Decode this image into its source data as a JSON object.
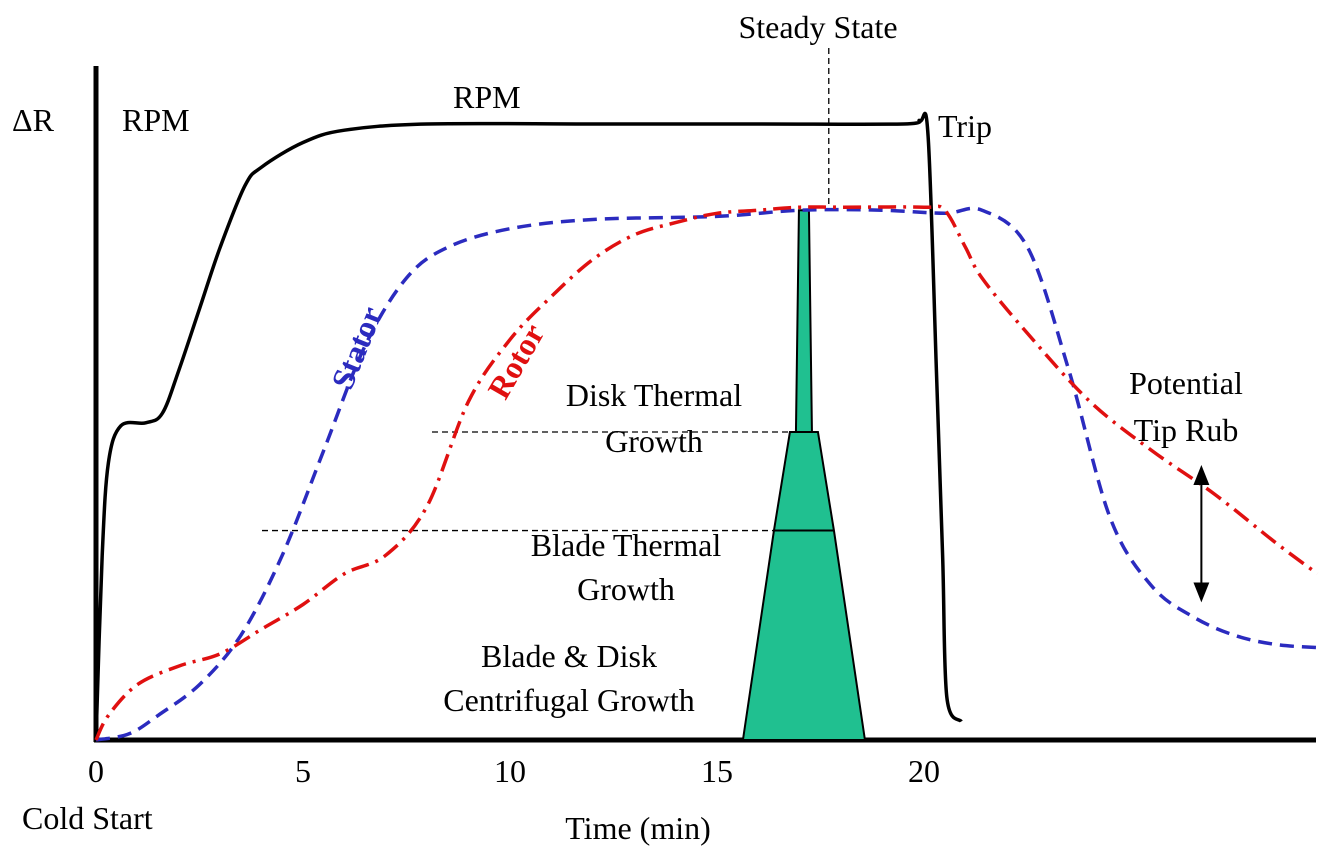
{
  "chart_data": {
    "type": "line",
    "title": "",
    "xlabel": "Time (min)",
    "ylabel": "ΔR",
    "xlim": [
      0,
      29.5
    ],
    "ylim": [
      0,
      1.0
    ],
    "x_ticks": [
      {
        "value": 0,
        "label": "0"
      },
      {
        "value": 5,
        "label": "5"
      },
      {
        "value": 10,
        "label": "10"
      },
      {
        "value": 15,
        "label": "15"
      },
      {
        "value": 20,
        "label": "20"
      }
    ],
    "series": [
      {
        "name": "RPM",
        "color": "#000000",
        "style": "solid",
        "points": [
          [
            0,
            0
          ],
          [
            0.15,
            0.3
          ],
          [
            0.3,
            0.45
          ],
          [
            0.6,
            0.51
          ],
          [
            1.2,
            0.515
          ],
          [
            1.6,
            0.53
          ],
          [
            2,
            0.6
          ],
          [
            2.5,
            0.7
          ],
          [
            3,
            0.8
          ],
          [
            3.6,
            0.9
          ],
          [
            4,
            0.93
          ],
          [
            5,
            0.97
          ],
          [
            6,
            0.99
          ],
          [
            8,
            1.0
          ],
          [
            12,
            1.0
          ],
          [
            16,
            1.0
          ],
          [
            19.5,
            1.0
          ],
          [
            19.9,
            1.005
          ],
          [
            20.1,
            0.98
          ],
          [
            20.3,
            0.6
          ],
          [
            20.45,
            0.3
          ],
          [
            20.55,
            0.07
          ],
          [
            20.9,
            0.03
          ]
        ]
      },
      {
        "name": "Stator",
        "color": "#2b2bbf",
        "style": "dashed",
        "points": [
          [
            0,
            0
          ],
          [
            0.8,
            0.01
          ],
          [
            1.5,
            0.04
          ],
          [
            2.5,
            0.09
          ],
          [
            3.5,
            0.17
          ],
          [
            4.5,
            0.3
          ],
          [
            5.5,
            0.47
          ],
          [
            6.5,
            0.64
          ],
          [
            7.5,
            0.75
          ],
          [
            8.5,
            0.8
          ],
          [
            10,
            0.83
          ],
          [
            12,
            0.845
          ],
          [
            15,
            0.85
          ],
          [
            17,
            0.86
          ],
          [
            19,
            0.86
          ],
          [
            20.5,
            0.855
          ],
          [
            21.4,
            0.86
          ],
          [
            22.5,
            0.8
          ],
          [
            23.5,
            0.6
          ],
          [
            24.5,
            0.36
          ],
          [
            25.5,
            0.25
          ],
          [
            26.5,
            0.2
          ],
          [
            27.5,
            0.17
          ],
          [
            28.5,
            0.155
          ],
          [
            29.5,
            0.15
          ]
        ]
      },
      {
        "name": "Rotor",
        "color": "#e01010",
        "style": "dash-dot",
        "points": [
          [
            0,
            0
          ],
          [
            0.3,
            0.04
          ],
          [
            1,
            0.09
          ],
          [
            2,
            0.12
          ],
          [
            3,
            0.14
          ],
          [
            4,
            0.18
          ],
          [
            5,
            0.22
          ],
          [
            6,
            0.27
          ],
          [
            7,
            0.3
          ],
          [
            8,
            0.38
          ],
          [
            9,
            0.55
          ],
          [
            10,
            0.65
          ],
          [
            11,
            0.72
          ],
          [
            12,
            0.78
          ],
          [
            13,
            0.82
          ],
          [
            14,
            0.84
          ],
          [
            15,
            0.855
          ],
          [
            16,
            0.86
          ],
          [
            17,
            0.865
          ],
          [
            18,
            0.865
          ],
          [
            20,
            0.865
          ],
          [
            20.5,
            0.86
          ],
          [
            21,
            0.8
          ],
          [
            21.4,
            0.75
          ],
          [
            22.5,
            0.66
          ],
          [
            24,
            0.55
          ],
          [
            25.5,
            0.47
          ],
          [
            27,
            0.4
          ],
          [
            28.5,
            0.32
          ],
          [
            29.5,
            0.27
          ]
        ]
      }
    ],
    "steady_state_x": 17.7,
    "growth_bar": {
      "x_center": 17.1,
      "levels": [
        0.34,
        0.5,
        0.86
      ],
      "color": "#20c090"
    },
    "rub_arrow": {
      "x": 26.7,
      "y_low": 0.23,
      "y_high": 0.44
    },
    "labels": {
      "y_axis": "ΔR",
      "rpm_left": "RPM",
      "rpm_top": "RPM",
      "trip": "Trip",
      "steady_state": "Steady State",
      "stator": "Stator",
      "rotor": "Rotor",
      "disk_thermal_1": "Disk Thermal",
      "disk_thermal_2": "Growth",
      "blade_thermal_1": "Blade Thermal",
      "blade_thermal_2": "Growth",
      "centrifugal_1": "Blade & Disk",
      "centrifugal_2": "Centrifugal Growth",
      "rub_1": "Potential",
      "rub_2": "Tip Rub",
      "cold_start": "Cold Start",
      "time": "Time (min)"
    }
  }
}
